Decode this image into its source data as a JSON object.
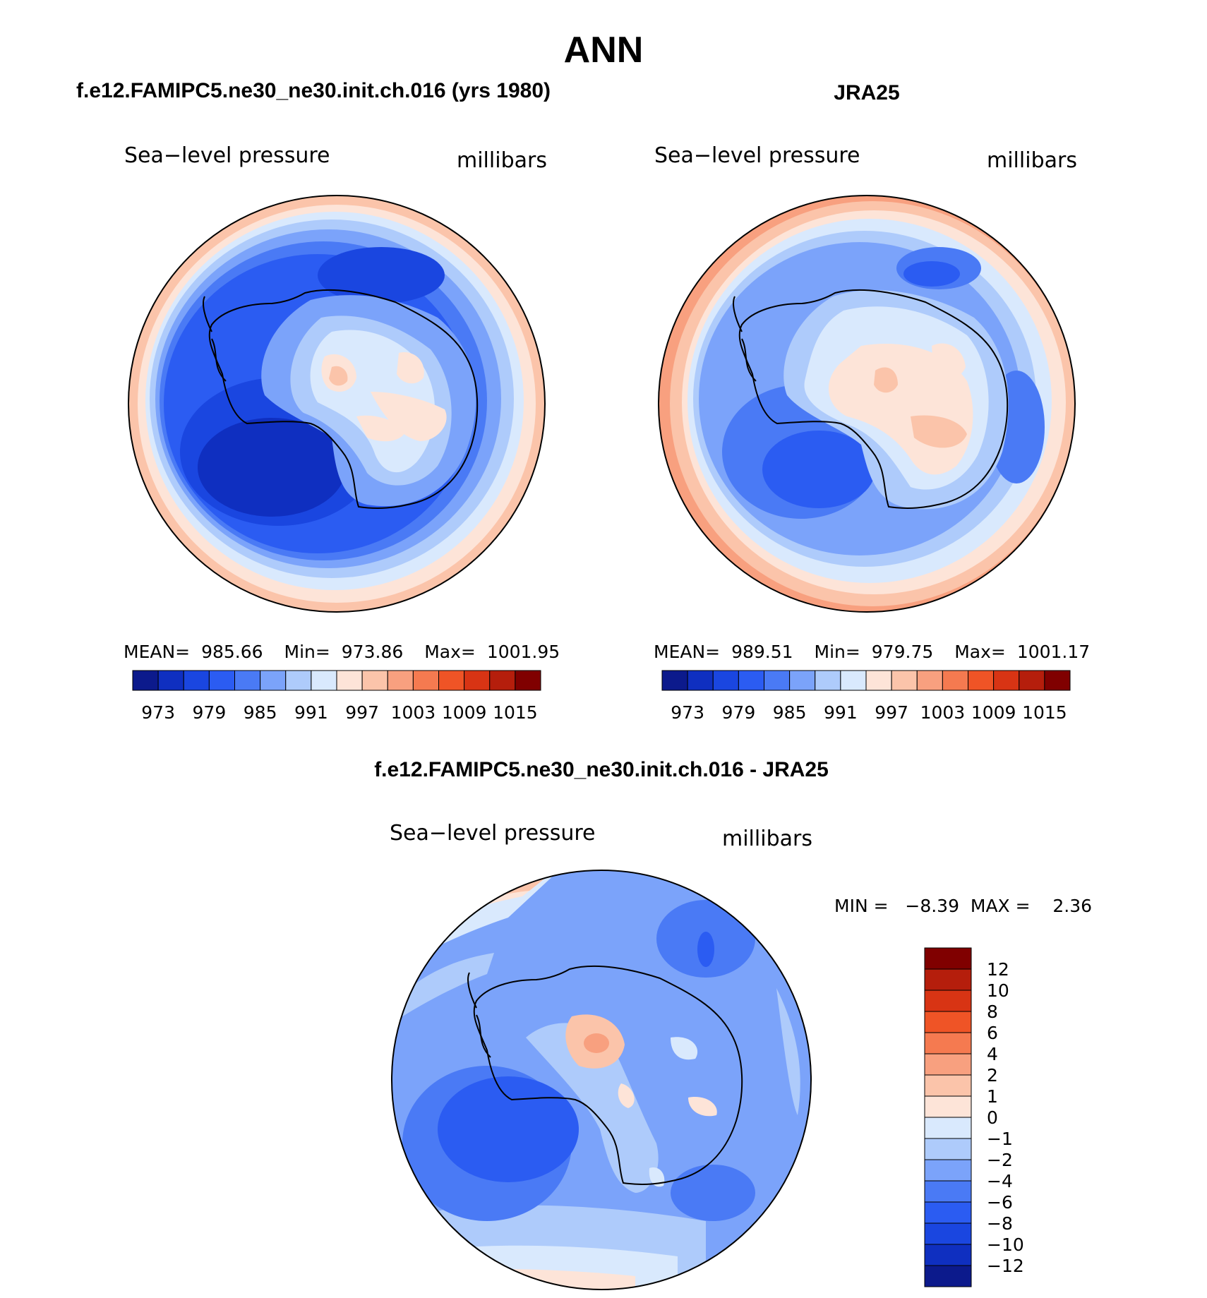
{
  "title": "ANN",
  "panels": [
    {
      "heading": "f.e12.FAMIPC5.ne30_ne30.init.ch.016 (yrs 1980)",
      "variable": "Sea−level pressure",
      "units": "millibars",
      "stats": {
        "mean_label": "MEAN=",
        "mean": "985.66",
        "min_label": "Min=",
        "min": "973.86",
        "max_label": "Max=",
        "max": "1001.95"
      },
      "colorbar_labels": [
        "973",
        "979",
        "985",
        "991",
        "997",
        "1003",
        "1009",
        "1015"
      ]
    },
    {
      "heading": "JRA25",
      "variable": "Sea−level pressure",
      "units": "millibars",
      "stats": {
        "mean_label": "MEAN=",
        "mean": "989.51",
        "min_label": "Min=",
        "min": "979.75",
        "max_label": "Max=",
        "max": "1001.17"
      },
      "colorbar_labels": [
        "973",
        "979",
        "985",
        "991",
        "997",
        "1003",
        "1009",
        "1015"
      ]
    },
    {
      "heading": "f.e12.FAMIPC5.ne30_ne30.init.ch.016 - JRA25",
      "variable": "Sea−level pressure",
      "units": "millibars",
      "stats": {
        "text": "MIN =   −8.39  MAX =    2.36"
      },
      "colorbar_labels": [
        "12",
        "10",
        "8",
        "6",
        "4",
        "2",
        "1",
        "0",
        "−1",
        "−2",
        "−4",
        "−6",
        "−8",
        "−10",
        "−12"
      ]
    }
  ],
  "colors": {
    "abs_scale": [
      "#0c1a8c",
      "#0f2fc0",
      "#1a46e0",
      "#2b5cf2",
      "#4a7af5",
      "#7ba3fa",
      "#aecbfb",
      "#d9e9fd",
      "#fde4d8",
      "#fbc4aa",
      "#f8a07f",
      "#f57a50",
      "#ef5426",
      "#d83414",
      "#b51e0c",
      "#800000"
    ],
    "diff_scale": [
      "#800000",
      "#b51e0c",
      "#d83414",
      "#ef5426",
      "#f57a50",
      "#f8a07f",
      "#fbc4aa",
      "#fde4d8",
      "#d9e9fd",
      "#aecbfb",
      "#7ba3fa",
      "#4a7af5",
      "#2b5cf2",
      "#1a46e0",
      "#0f2fc0",
      "#0c1a8c"
    ]
  }
}
